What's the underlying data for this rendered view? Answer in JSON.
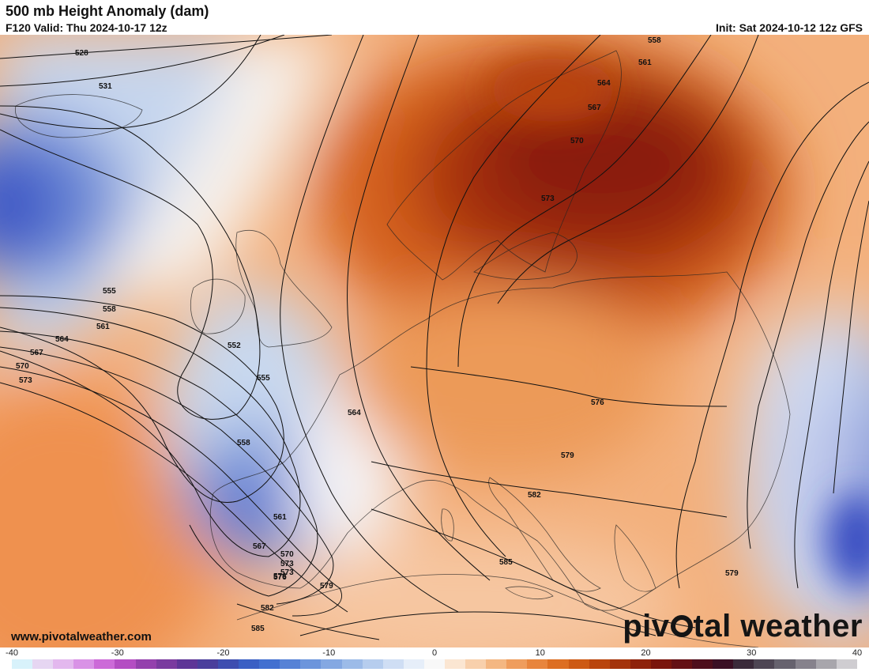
{
  "header": {
    "title": "500 mb Height Anomaly (dam)",
    "valid": "F120 Valid: Thu 2024-10-17 12z",
    "init": "Init: Sat 2024-10-12 12z GFS"
  },
  "footer": {
    "website": "www.pivotalweather.com",
    "brand_pre": "piv",
    "brand_post": "tal weather"
  },
  "colorbar": {
    "ticks": [
      "-40",
      "-30",
      "-20",
      "-10",
      "0",
      "10",
      "20",
      "30",
      "40"
    ],
    "min": -40,
    "max": 40,
    "colors": [
      "#d8f2fb",
      "#e6d6f2",
      "#e3b8ee",
      "#d992e6",
      "#cc6ad8",
      "#b44dc3",
      "#9440ad",
      "#7a3a9f",
      "#5e3597",
      "#4a3e9c",
      "#3e4eb0",
      "#3a5fc4",
      "#4270d0",
      "#5682d6",
      "#6c95dc",
      "#84a8e2",
      "#9cbbe8",
      "#b6cdee",
      "#cfdef4",
      "#e6eef9",
      "#f8f8f8",
      "#fbe6d2",
      "#f8d0ac",
      "#f4b782",
      "#ef9d5d",
      "#e8853d",
      "#dd6e22",
      "#cd5a14",
      "#b9450c",
      "#a4330a",
      "#8e220a",
      "#7a150c",
      "#641014",
      "#4e0e1c",
      "#3a0f24",
      "#3a2a3a",
      "#4e4654",
      "#66626e",
      "#86828c",
      "#a8a6ac",
      "#cfcdd1"
    ]
  },
  "map": {
    "contour_labels": [
      "528",
      "531",
      "552",
      "555",
      "558",
      "561",
      "564",
      "567",
      "570",
      "573",
      "576",
      "579",
      "582",
      "585",
      "558",
      "561",
      "564",
      "567",
      "570",
      "573",
      "555",
      "558",
      "561",
      "564",
      "567",
      "570",
      "573",
      "576",
      "579",
      "582",
      "585",
      "573",
      "576",
      "579"
    ]
  }
}
